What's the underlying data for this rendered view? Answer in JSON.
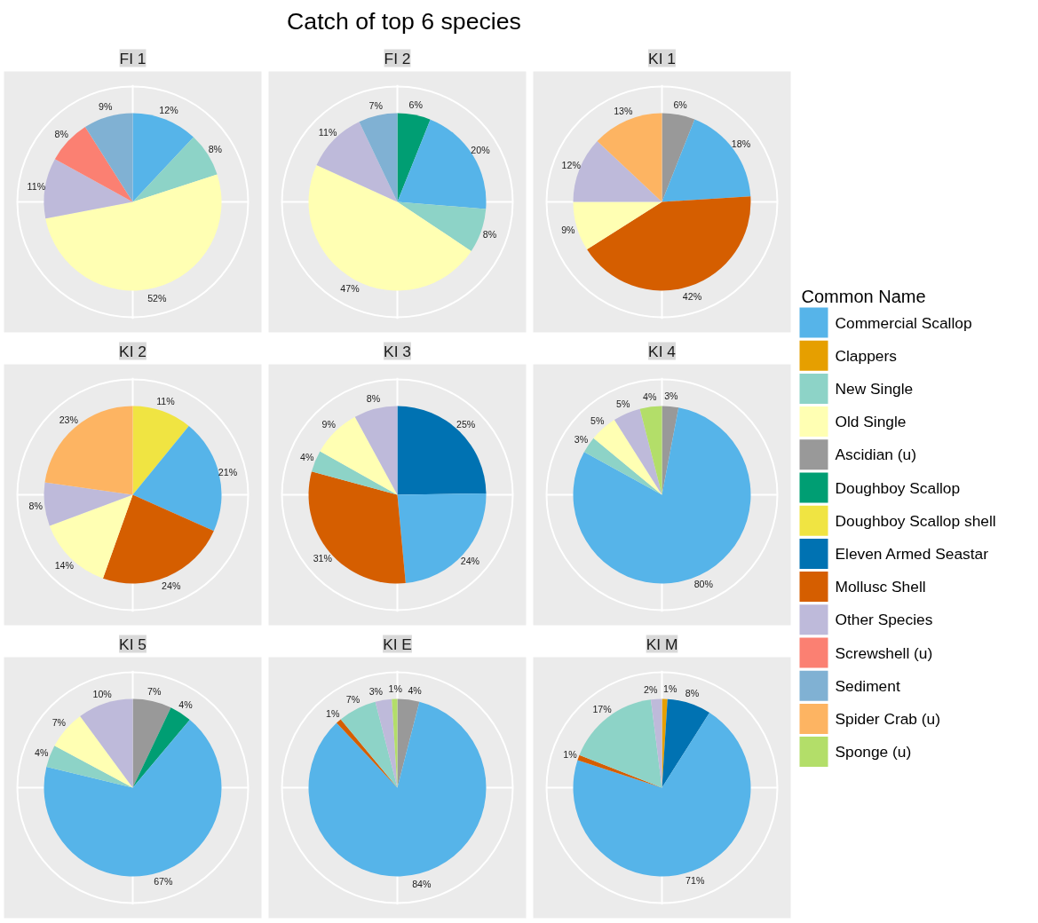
{
  "chart_data": [
    {
      "type": "other",
      "title": "Catch of top 6 species",
      "legend_title": "Common Name",
      "categories": [
        "Commercial Scallop",
        "Clappers",
        "New Single",
        "Old Single",
        "Ascidian (u)",
        "Doughboy Scallop",
        "Doughboy Scallop shell",
        "Eleven Armed Seastar",
        "Mollusc Shell",
        "Other Species",
        "Screwshell (u)",
        "Sediment",
        "Spider Crab (u)",
        "Sponge (u)"
      ],
      "colors": [
        "#56b4e9",
        "#e69f00",
        "#8dd3c7",
        "#ffffb3",
        "#999999",
        "#009e73",
        "#f0e442",
        "#0072b2",
        "#d55e00",
        "#bebada",
        "#fb8072",
        "#80b1d3",
        "#fdb462",
        "#b3de69"
      ]
    },
    {
      "type": "pie",
      "title": "FI 1",
      "grid": true,
      "categories": [
        null,
        null,
        null,
        null,
        null,
        null
      ],
      "values": [
        12,
        8,
        52,
        11,
        8,
        9
      ],
      "value_labels": [
        "12%",
        "8%",
        "52%",
        "11%",
        "8%",
        "9%"
      ],
      "colors": [
        "#56b4e9",
        "#8dd3c7",
        "#ffffb3",
        "#bebada",
        "#fb8072",
        "#80b1d3"
      ]
    },
    {
      "type": "pie",
      "title": "FI 2",
      "grid": true,
      "categories": [
        null,
        null,
        null,
        null,
        null,
        null
      ],
      "values": [
        6,
        20,
        8,
        47,
        11,
        7
      ],
      "value_labels": [
        "6%",
        "20%",
        "8%",
        "47%",
        "11%",
        "7%"
      ],
      "colors": [
        "#009e73",
        "#56b4e9",
        "#8dd3c7",
        "#ffffb3",
        "#bebada",
        "#80b1d3"
      ]
    },
    {
      "type": "pie",
      "title": "KI 1",
      "grid": true,
      "categories": [
        null,
        null,
        null,
        null,
        null,
        null
      ],
      "values": [
        6,
        18,
        42,
        9,
        12,
        13
      ],
      "value_labels": [
        "6%",
        "18%",
        "42%",
        "9%",
        "12%",
        "13%"
      ],
      "colors": [
        "#999999",
        "#56b4e9",
        "#d55e00",
        "#ffffb3",
        "#bebada",
        "#fdb462"
      ]
    },
    {
      "type": "pie",
      "title": "KI 2",
      "grid": true,
      "categories": [
        null,
        null,
        null,
        null,
        null,
        null
      ],
      "values": [
        11,
        21,
        24,
        14,
        8,
        23
      ],
      "value_labels": [
        "11%",
        "21%",
        "24%",
        "14%",
        "8%",
        "23%"
      ],
      "colors": [
        "#f0e442",
        "#56b4e9",
        "#d55e00",
        "#ffffb3",
        "#bebada",
        "#fdb462"
      ]
    },
    {
      "type": "pie",
      "title": "KI 3",
      "grid": true,
      "categories": [
        null,
        null,
        null,
        null,
        null,
        null
      ],
      "values": [
        25,
        24,
        31,
        4,
        9,
        8
      ],
      "value_labels": [
        "25%",
        "24%",
        "31%",
        "4%",
        "9%",
        "8%"
      ],
      "colors": [
        "#0072b2",
        "#56b4e9",
        "#d55e00",
        "#8dd3c7",
        "#ffffb3",
        "#bebada"
      ]
    },
    {
      "type": "pie",
      "title": "KI 4",
      "grid": true,
      "categories": [
        null,
        null,
        null,
        null,
        null,
        null
      ],
      "values": [
        3,
        80,
        3,
        5,
        5,
        4
      ],
      "value_labels": [
        "3%",
        "80%",
        "3%",
        "5%",
        "5%",
        "4%"
      ],
      "colors": [
        "#999999",
        "#56b4e9",
        "#8dd3c7",
        "#ffffb3",
        "#bebada",
        "#b3de69"
      ]
    },
    {
      "type": "pie",
      "title": "KI 5",
      "grid": true,
      "categories": [
        null,
        null,
        null,
        null,
        null,
        null
      ],
      "values": [
        7,
        4,
        67,
        4,
        7,
        10
      ],
      "value_labels": [
        "7%",
        "4%",
        "67%",
        "4%",
        "7%",
        "10%"
      ],
      "colors": [
        "#999999",
        "#009e73",
        "#56b4e9",
        "#8dd3c7",
        "#ffffb3",
        "#bebada"
      ]
    },
    {
      "type": "pie",
      "title": "KI E",
      "grid": true,
      "categories": [
        null,
        null,
        null,
        null,
        null,
        null
      ],
      "values": [
        4,
        84,
        1,
        7,
        3,
        1
      ],
      "value_labels": [
        "4%",
        "84%",
        "1%",
        "7%",
        "3%",
        "1%"
      ],
      "colors": [
        "#999999",
        "#56b4e9",
        "#d55e00",
        "#8dd3c7",
        "#bebada",
        "#b3de69"
      ]
    },
    {
      "type": "pie",
      "title": "KI M",
      "grid": true,
      "categories": [
        null,
        null,
        null,
        null,
        null,
        null
      ],
      "values": [
        1,
        8,
        71,
        1,
        17,
        2
      ],
      "value_labels": [
        "1%",
        "8%",
        "71%",
        "1%",
        "17%",
        "2%"
      ],
      "colors": [
        "#e69f00",
        "#0072b2",
        "#56b4e9",
        "#d55e00",
        "#8dd3c7",
        "#bebada"
      ]
    }
  ]
}
